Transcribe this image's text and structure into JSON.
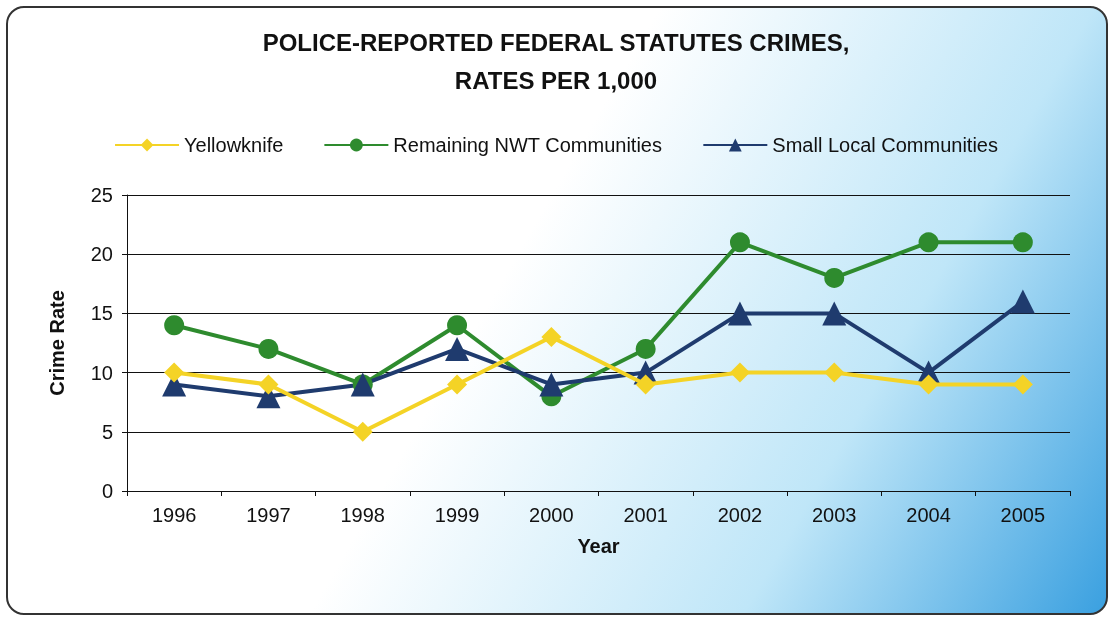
{
  "chart_data": {
    "type": "line",
    "title": "POLICE-REPORTED FEDERAL STATUTES CRIMES,\nRATES PER 1,000",
    "xlabel": "Year",
    "ylabel": "Crime Rate",
    "categories": [
      "1996",
      "1997",
      "1998",
      "1999",
      "2000",
      "2001",
      "2002",
      "2003",
      "2004",
      "2005"
    ],
    "series": [
      {
        "name": "Yellowknife",
        "color": "#f4d326",
        "marker": "diamond",
        "values": [
          10,
          9,
          5,
          9,
          13,
          9,
          10,
          10,
          9,
          9
        ]
      },
      {
        "name": "Remaining NWT Communities",
        "color": "#2e8b2e",
        "marker": "circle",
        "values": [
          14,
          12,
          9,
          14,
          8,
          12,
          21,
          18,
          21,
          21
        ]
      },
      {
        "name": "Small Local Communities",
        "color": "#1f3b6e",
        "marker": "triangle",
        "values": [
          9,
          8,
          9,
          12,
          9,
          10,
          15,
          15,
          10,
          16
        ]
      }
    ],
    "ylim": [
      0,
      25
    ],
    "yticks": [
      0,
      5,
      10,
      15,
      20,
      25
    ],
    "grid": "y",
    "legend": "top",
    "line_style": "solid"
  }
}
